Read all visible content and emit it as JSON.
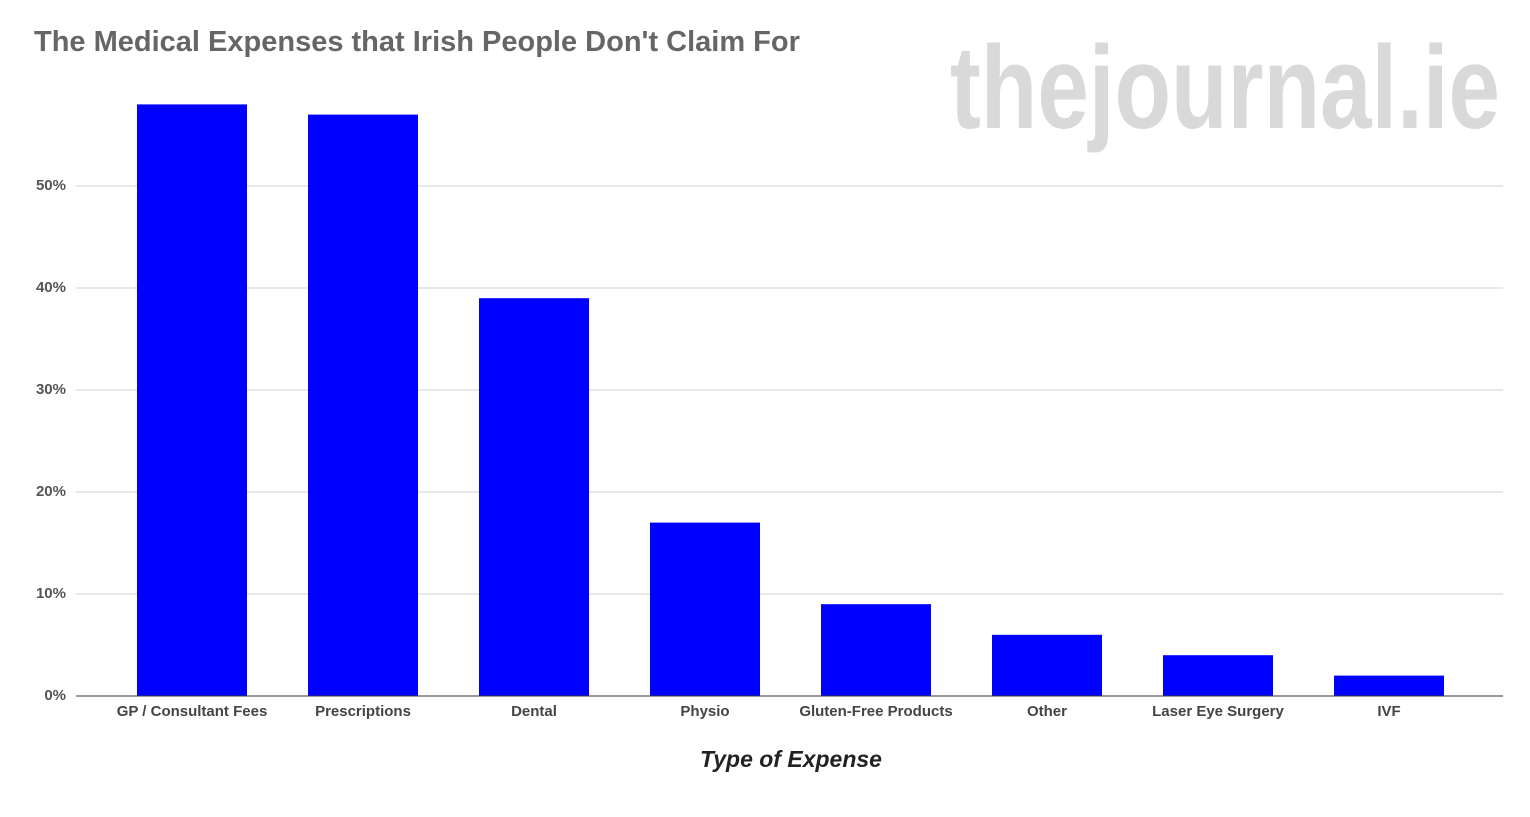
{
  "chart_data": {
    "type": "bar",
    "title": "The Medical Expenses that Irish People Don't Claim For",
    "watermark": "thejournal.ie",
    "x_label": "Type of Expense",
    "categories": [
      "GP / Consultant Fees",
      "Prescriptions",
      "Dental",
      "Physio",
      "Gluten-Free Products",
      "Other",
      "Laser Eye Surgery",
      "IVF"
    ],
    "values": [
      58,
      57,
      39,
      17,
      9,
      6,
      4,
      2
    ],
    "color": "#0000ff",
    "ylim": [
      0,
      60
    ],
    "yticks": [
      {
        "value": 0,
        "label": "0%"
      },
      {
        "value": 10,
        "label": "10%"
      },
      {
        "value": 20,
        "label": "20%"
      },
      {
        "value": 30,
        "label": "30%"
      },
      {
        "value": 40,
        "label": "40%"
      },
      {
        "value": 50,
        "label": "50%"
      }
    ],
    "grid": true
  }
}
